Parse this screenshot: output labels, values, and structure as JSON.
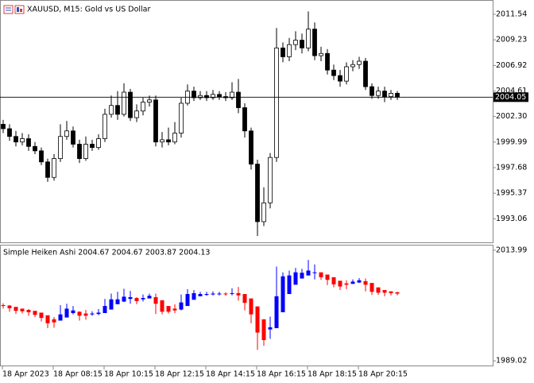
{
  "chart_data": [
    {
      "type": "candlestick",
      "title": "XAUUSD, M15:  Gold vs US Dollar",
      "up_color": "#ffffff",
      "down_color": "#000000",
      "edge_color": "#000000",
      "open": [
        2001.6,
        2001.2,
        2000.5,
        2000.0,
        2000.3,
        1999.6,
        1999.2,
        1998.2,
        1996.8,
        1998.5,
        2000.5,
        2001.0,
        1999.8,
        1998.5,
        1999.8,
        1999.5,
        2000.3,
        2002.5,
        2003.3,
        2002.5,
        2004.5,
        2002.2,
        2002.8,
        2003.6,
        2003.8,
        2000.0,
        2000.2,
        2000.0,
        2000.8,
        2003.5,
        2004.6,
        2004.0,
        2004.2,
        2004.0,
        2004.3,
        2004.1,
        2004.0,
        2004.5,
        2003.1,
        2001.0,
        1998.0,
        1992.8,
        1994.5,
        1998.6,
        2008.5,
        2007.7,
        2008.8,
        2009.2,
        2008.5,
        2010.2,
        2007.8,
        2008.0,
        2006.5,
        2006.0,
        2005.5,
        2006.8,
        2007.0,
        2007.3,
        2005.0,
        2004.2,
        2004.6,
        2004.1,
        2004.4
      ],
      "high": [
        2002.0,
        2001.6,
        2001.0,
        2000.8,
        2000.7,
        2000.0,
        1999.5,
        1998.5,
        1998.9,
        2001.6,
        2001.9,
        2001.4,
        2000.2,
        2000.5,
        2000.2,
        2000.7,
        2003.0,
        2004.2,
        2004.6,
        2005.3,
        2004.8,
        2003.4,
        2004.0,
        2004.2,
        2004.2,
        2000.9,
        2001.3,
        2001.8,
        2004.0,
        2005.2,
        2005.0,
        2004.6,
        2004.6,
        2004.7,
        2004.6,
        2004.5,
        2005.4,
        2005.7,
        2003.5,
        2001.3,
        1998.4,
        1995.9,
        1999.0,
        2010.3,
        2009.0,
        2009.4,
        2010.0,
        2009.8,
        2011.8,
        2010.8,
        2008.6,
        2008.4,
        2007.0,
        2006.5,
        2007.2,
        2007.4,
        2007.7,
        2007.6,
        2005.3,
        2005.0,
        2005.0,
        2004.7,
        2004.6
      ],
      "low": [
        2000.8,
        2000.1,
        1999.6,
        1999.7,
        1999.2,
        1998.9,
        1997.9,
        1996.4,
        1996.5,
        1998.2,
        2000.2,
        1999.5,
        1998.1,
        1998.3,
        1999.2,
        1999.3,
        2000.0,
        2002.2,
        2002.0,
        2002.3,
        2001.9,
        2001.8,
        2002.4,
        2003.2,
        1999.6,
        1999.5,
        1999.7,
        1999.8,
        2000.4,
        2003.3,
        2003.7,
        2003.8,
        2003.7,
        2003.8,
        2003.8,
        2003.7,
        2003.8,
        2002.6,
        2000.4,
        1997.5,
        1991.5,
        1992.4,
        1994.0,
        1998.2,
        2007.2,
        2007.3,
        2008.3,
        2008.0,
        2008.2,
        2007.4,
        2007.3,
        2006.1,
        2005.6,
        2005.0,
        2005.2,
        2006.4,
        2006.6,
        2004.7,
        2003.9,
        2003.9,
        2003.6,
        2003.8,
        2003.8
      ],
      "close": [
        2001.2,
        2000.5,
        2000.0,
        2000.3,
        1999.6,
        1999.2,
        1998.2,
        1996.8,
        1998.5,
        2000.5,
        2001.0,
        1999.8,
        1998.5,
        1999.8,
        1999.5,
        2000.3,
        2002.5,
        2003.3,
        2002.5,
        2004.5,
        2002.2,
        2002.8,
        2003.6,
        2003.8,
        2000.0,
        2000.2,
        2000.0,
        2000.8,
        2003.5,
        2004.6,
        2004.0,
        2004.2,
        2004.0,
        2004.3,
        2004.1,
        2004.0,
        2004.5,
        2003.1,
        2001.0,
        1998.0,
        1992.8,
        1994.5,
        1998.6,
        2008.5,
        2007.7,
        2008.8,
        2009.2,
        2008.5,
        2010.2,
        2007.8,
        2008.0,
        2006.5,
        2006.0,
        2005.5,
        2006.8,
        2007.0,
        2007.3,
        2005.0,
        2004.2,
        2004.6,
        2004.1,
        2004.4,
        2004.05
      ],
      "current_price": 2004.05,
      "ylim": [
        1990.93,
        2012.76
      ],
      "yticks": [
        2011.54,
        2009.23,
        2006.92,
        2004.61,
        {
          "value": 2002.3,
          "label": "2002.30"
        },
        1999.99,
        1997.68,
        1995.37,
        1993.06
      ]
    },
    {
      "type": "heiken_ashi",
      "title": "Simple Heiken Ashi 2004.67 2004.67 2003.87 2004.13",
      "up_color": "#0000ff",
      "down_color": "#ff0000",
      "open": [
        2001.6,
        2001.5,
        2001.2,
        2000.8,
        2000.5,
        2000.3,
        1999.9,
        1999.3,
        1998.4,
        1998.1,
        1998.8,
        1999.8,
        2000.1,
        1999.7,
        1999.5,
        1999.6,
        1999.8,
        2000.6,
        2001.8,
        2002.4,
        2003.0,
        2003.2,
        2002.9,
        2003.1,
        2003.4,
        2002.7,
        2001.4,
        2000.8,
        2000.6,
        2001.4,
        2002.8,
        2003.6,
        2003.9,
        2004.0,
        2004.1,
        2004.2,
        2004.2,
        2004.3,
        2004.1,
        2003.1,
        2001.3,
        1998.4,
        1996.1,
        1996.4,
        2000.0,
        2004.1,
        2006.2,
        2007.6,
        2008.3,
        2008.9,
        2009.0,
        2008.5,
        2007.9,
        2007.1,
        2006.5,
        2006.4,
        2006.7,
        2007.0,
        2006.6,
        2005.6,
        2005.0,
        2004.7,
        2004.5
      ],
      "close": [
        2001.4,
        2000.9,
        2000.3,
        2000.2,
        2000.0,
        1999.4,
        1998.7,
        1997.5,
        1997.7,
        1999.5,
        2000.8,
        2000.4,
        1999.2,
        1999.2,
        1999.7,
        1999.9,
        2001.4,
        2002.9,
        2002.9,
        2003.5,
        2003.4,
        2002.5,
        2003.2,
        2003.7,
        2001.9,
        2000.1,
        2000.1,
        2000.4,
        2002.2,
        2004.1,
        2004.3,
        2004.1,
        2004.1,
        2004.2,
        2004.2,
        2004.1,
        2004.3,
        2003.8,
        2002.1,
        1999.5,
        1995.4,
        1993.7,
        1996.6,
        2003.6,
        2008.1,
        2008.3,
        2009.0,
        2008.9,
        2009.4,
        2009.0,
        2007.9,
        2007.3,
        2006.3,
        2005.8,
        2006.2,
        2006.9,
        2007.2,
        2006.2,
        2004.6,
        2004.4,
        2004.4,
        2004.3,
        2004.2
      ],
      "ylim": [
        1987.96,
        2015.05
      ],
      "yticks": [
        2013.99,
        1989.02
      ],
      "xticks": [
        {
          "value": 0,
          "label": "18 Apr 2023"
        },
        {
          "value": 8,
          "label": "18 Apr 08:15"
        },
        {
          "value": 16,
          "label": "18 Apr 10:15"
        },
        {
          "value": 24,
          "label": "18 Apr 12:15"
        },
        {
          "value": 32,
          "label": "18 Apr 14:15"
        },
        {
          "value": 40,
          "label": "18 Apr 16:15"
        },
        {
          "value": 48,
          "label": "18 Apr 18:15"
        },
        {
          "value": 56,
          "label": "18 Apr 20:15"
        }
      ]
    }
  ]
}
